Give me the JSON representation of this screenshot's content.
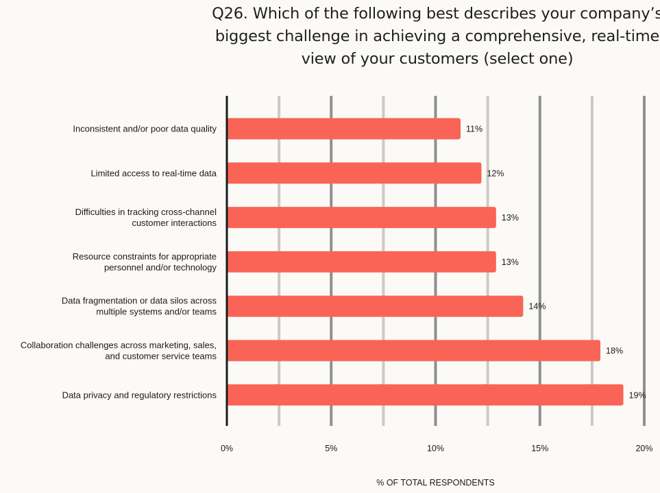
{
  "chart_data": {
    "type": "bar",
    "orientation": "horizontal",
    "title": "Q26. Which of the following best describes your company’s biggest challenge in achieving a comprehensive, real-time view of your customers (select one)",
    "xlabel": "% OF TOTAL RESPONDENTS",
    "ylabel": "",
    "xlim": [
      0,
      20
    ],
    "ticks": [
      0,
      5,
      10,
      15,
      20
    ],
    "tick_labels": [
      "0%",
      "5%",
      "10%",
      "15%",
      "20%"
    ],
    "grid": true,
    "legend": "none",
    "categories": [
      "Inconsistent and/or poor data quality",
      "Limited access to real-time data",
      "Difficulties in tracking cross-channel customer interactions",
      "Resource constraints for appropriate personnel and/or technology",
      "Data fragmentation or data silos across multiple systems and/or teams",
      "Collaboration challenges across marketing, sales, and customer service teams",
      "Data privacy and regulatory restrictions"
    ],
    "category_lines": [
      [
        "Inconsistent and/or poor data quality"
      ],
      [
        "Limited access to real-time data"
      ],
      [
        "Difficulties in tracking cross-channel",
        "customer interactions"
      ],
      [
        "Resource constraints for appropriate",
        "personnel and/or technology"
      ],
      [
        "Data fragmentation or data silos across",
        "multiple systems and/or teams"
      ],
      [
        "Collaboration challenges across marketing, sales,",
        "and customer service teams"
      ],
      [
        "Data privacy and regulatory restrictions"
      ]
    ],
    "values": [
      11.2,
      12.2,
      12.9,
      12.9,
      14.2,
      17.9,
      19.0
    ],
    "value_labels": [
      "11%",
      "12%",
      "13%",
      "13%",
      "14%",
      "18%",
      "19%"
    ],
    "colors": {
      "bar": "#fa6456",
      "grid_major": "#8f8f8f",
      "grid_minor": "#cdc9c4",
      "axis": "#1a1a1a"
    }
  }
}
